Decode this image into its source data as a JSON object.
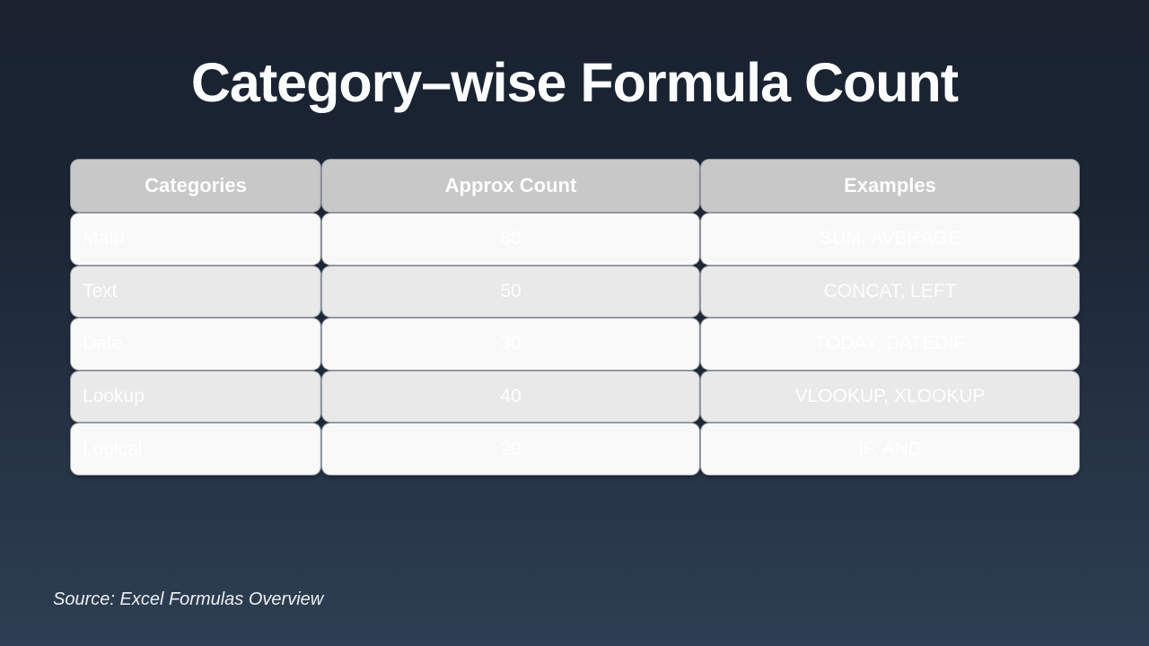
{
  "slide": {
    "title": "Category–wise Formula Count",
    "source_note": "Source: Excel Formulas Overview"
  },
  "table": {
    "headers": [
      "Categories",
      "Approx Count",
      "Examples"
    ],
    "rows": [
      {
        "category": "Math",
        "approx_count": "80",
        "examples": "SUM, AVERAGE"
      },
      {
        "category": "Text",
        "approx_count": "50",
        "examples": "CONCAT, LEFT"
      },
      {
        "category": "Date",
        "approx_count": "30",
        "examples": "TODAY, DATEDIF"
      },
      {
        "category": "Lookup",
        "approx_count": "40",
        "examples": "VLOOKUP, XLOOKUP"
      },
      {
        "category": "Logical",
        "approx_count": "20",
        "examples": "IF, AND"
      }
    ]
  },
  "chart_data": {
    "type": "table",
    "title": "Category–wise Formula Count",
    "columns": [
      "Categories",
      "Approx Count",
      "Examples"
    ],
    "categories": [
      "Math",
      "Text",
      "Date",
      "Lookup",
      "Logical"
    ],
    "values": [
      80,
      50,
      30,
      40,
      20
    ],
    "examples": [
      "SUM, AVERAGE",
      "CONCAT, LEFT",
      "TODAY, DATEDIF",
      "VLOOKUP, XLOOKUP",
      "IF, AND"
    ],
    "source": "Source: Excel Formulas Overview"
  },
  "colors": {
    "background_top": "#1a2230",
    "background_bottom": "#2e3f53",
    "header_fill": "#c8c8c8",
    "row_light": "#f9f9f9",
    "row_alt": "#e9e9e9",
    "text_on_rows": "#ffffff",
    "intersection_diamond": "#1e2735"
  }
}
